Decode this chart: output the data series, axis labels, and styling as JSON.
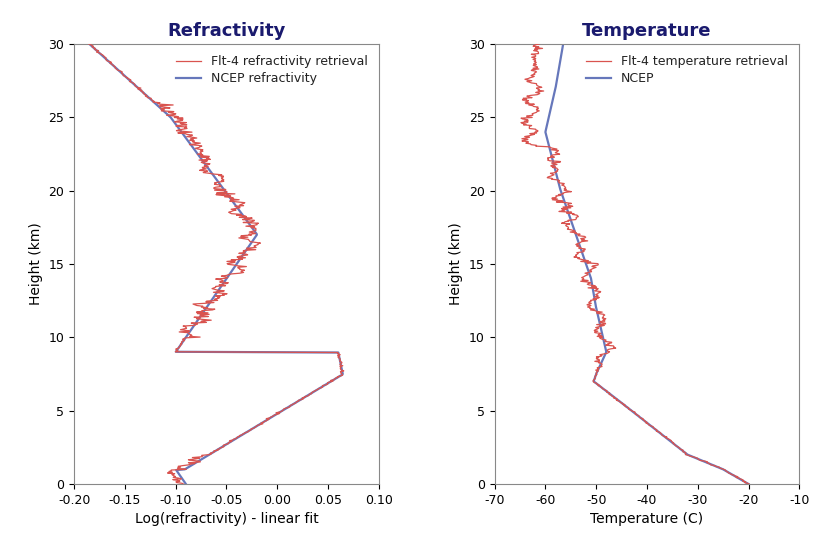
{
  "title_left": "Refractivity",
  "title_right": "Temperature",
  "ylabel": "Height (km)",
  "xlabel_left": "Log(refractivity) - linear fit",
  "xlabel_right": "Temperature (C)",
  "ylim": [
    0,
    30
  ],
  "xlim_left": [
    -0.2,
    0.1
  ],
  "xlim_right": [
    -70,
    -10
  ],
  "xticks_left": [
    -0.2,
    -0.15,
    -0.1,
    -0.05,
    0.0,
    0.05,
    0.1
  ],
  "xticks_right": [
    -70,
    -60,
    -50,
    -40,
    -30,
    -20,
    -10
  ],
  "yticks": [
    0,
    5,
    10,
    15,
    20,
    25,
    30
  ],
  "legend_left": [
    "Flt-4 refractivity retrieval",
    "NCEP refractivity"
  ],
  "legend_right": [
    "Flt-4 temperature retrieval",
    "NCEP"
  ],
  "color_red": "#d9534f",
  "color_blue": "#6677bb",
  "title_color": "#1a1a6e",
  "title_fontsize": 13,
  "label_fontsize": 10,
  "tick_fontsize": 9,
  "legend_fontsize": 9,
  "background_color": "#ffffff",
  "linewidth_red": 0.9,
  "linewidth_blue": 1.6
}
